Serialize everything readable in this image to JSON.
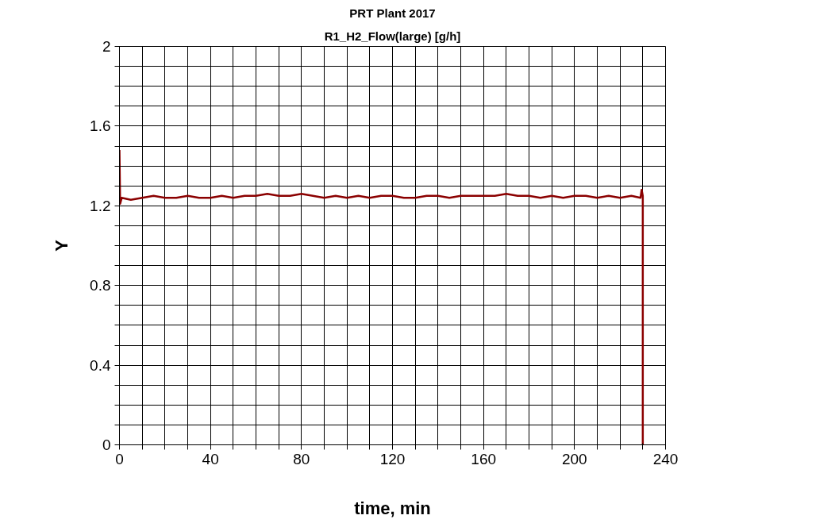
{
  "chart_data": {
    "type": "line",
    "title": "PRT Plant 2017",
    "subtitle": "R1_H2_Flow(large) [g/h]",
    "xlabel": "time, min",
    "ylabel": "Y",
    "series": [
      {
        "color": "#8b0000",
        "x": [
          0,
          0.3,
          1,
          5,
          10,
          15,
          20,
          25,
          30,
          35,
          40,
          45,
          50,
          55,
          60,
          65,
          70,
          75,
          80,
          85,
          90,
          95,
          100,
          105,
          110,
          115,
          120,
          125,
          130,
          135,
          140,
          145,
          150,
          155,
          160,
          165,
          170,
          175,
          180,
          185,
          190,
          195,
          200,
          205,
          210,
          215,
          220,
          225,
          229,
          229.5,
          230,
          230
        ],
        "values": [
          1.48,
          1.21,
          1.24,
          1.23,
          1.24,
          1.25,
          1.24,
          1.24,
          1.25,
          1.24,
          1.24,
          1.25,
          1.24,
          1.25,
          1.25,
          1.26,
          1.25,
          1.25,
          1.26,
          1.25,
          1.24,
          1.25,
          1.24,
          1.25,
          1.24,
          1.25,
          1.25,
          1.24,
          1.24,
          1.25,
          1.25,
          1.24,
          1.25,
          1.25,
          1.25,
          1.25,
          1.26,
          1.25,
          1.25,
          1.24,
          1.25,
          1.24,
          1.25,
          1.25,
          1.24,
          1.25,
          1.24,
          1.25,
          1.24,
          1.28,
          1.25,
          0
        ]
      }
    ],
    "xlim": [
      0,
      240
    ],
    "ylim": [
      0,
      2
    ],
    "xticks": [
      0,
      {
        "value": 10,
        "label": null
      },
      {
        "value": 20,
        "label": null
      },
      {
        "value": 30,
        "label": null
      },
      40,
      {
        "value": 50,
        "label": null
      },
      {
        "value": 60,
        "label": null
      },
      {
        "value": 70,
        "label": null
      },
      80,
      {
        "value": 90,
        "label": null
      },
      {
        "value": 100,
        "label": null
      },
      {
        "value": 110,
        "label": null
      },
      120,
      {
        "value": 130,
        "label": null
      },
      {
        "value": 140,
        "label": null
      },
      {
        "value": 150,
        "label": null
      },
      160,
      {
        "value": 170,
        "label": null
      },
      {
        "value": 180,
        "label": null
      },
      {
        "value": 190,
        "label": null
      },
      200,
      {
        "value": 210,
        "label": null
      },
      {
        "value": 220,
        "label": null
      },
      {
        "value": 230,
        "label": null
      },
      240
    ],
    "yticks": [
      0,
      {
        "value": 0.1,
        "label": null
      },
      {
        "value": 0.2,
        "label": null
      },
      {
        "value": 0.3,
        "label": null
      },
      0.4,
      {
        "value": 0.5,
        "label": null
      },
      {
        "value": 0.6,
        "label": null
      },
      {
        "value": 0.7,
        "label": null
      },
      0.8,
      {
        "value": 0.9,
        "label": null
      },
      {
        "value": 1.0,
        "label": null
      },
      {
        "value": 1.1,
        "label": null
      },
      1.2,
      {
        "value": 1.3,
        "label": null
      },
      {
        "value": 1.4,
        "label": null
      },
      {
        "value": 1.5,
        "label": null
      },
      1.6,
      {
        "value": 1.7,
        "label": null
      },
      {
        "value": 1.8,
        "label": null
      },
      {
        "value": 1.9,
        "label": null
      },
      2
    ],
    "grid": true
  }
}
